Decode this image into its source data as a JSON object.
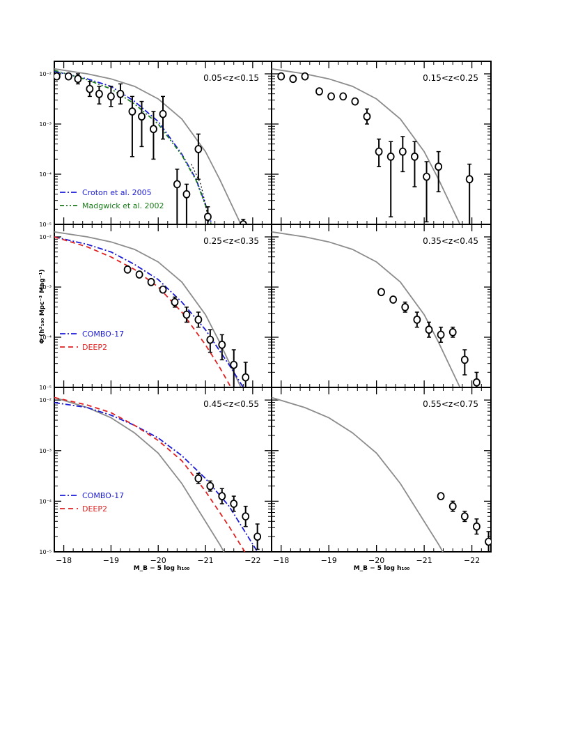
{
  "chart_data": [
    {
      "type": "scatter",
      "panel_label": "0.05<z<0.15",
      "xlim": [
        -17.8,
        -22.4
      ],
      "yexp_range": [
        -5,
        -1.75
      ],
      "y_scale": "log",
      "yticks": [
        {
          "exp": -2,
          "label": "10⁻²"
        },
        {
          "exp": -3,
          "label": "10⁻³"
        },
        {
          "exp": -4,
          "label": "10⁻⁴"
        },
        {
          "exp": -5,
          "label": "10⁻⁵"
        }
      ],
      "xticks": [],
      "series": [
        {
          "kind": "points",
          "x": [
            -17.85,
            -18.1,
            -18.3,
            -18.55,
            -18.75,
            -19.0,
            -19.2,
            -19.45,
            -19.65,
            -19.9,
            -20.1,
            -20.4,
            -20.6,
            -20.85,
            -21.05,
            -21.8
          ],
          "y": [
            -2.05,
            -2.05,
            -2.1,
            -2.3,
            -2.4,
            -2.45,
            -2.4,
            -2.75,
            -2.85,
            -3.1,
            -2.8,
            -4.2,
            -4.4,
            -3.5,
            -4.85,
            -5.0
          ],
          "err_lo": [
            0.05,
            0.05,
            0.1,
            0.15,
            0.2,
            0.2,
            0.2,
            0.9,
            0.6,
            0.6,
            0.5,
            0.8,
            0.6,
            0.6,
            0.3,
            0.1
          ],
          "err_hi": [
            0.05,
            0.05,
            0.1,
            0.15,
            0.15,
            0.2,
            0.2,
            0.3,
            0.3,
            0.35,
            0.35,
            0.3,
            0.2,
            0.3,
            0.2,
            0.1
          ]
        },
        {
          "kind": "curve",
          "style": "gray",
          "x": [
            -17.8,
            -18.5,
            -19.0,
            -19.5,
            -20.0,
            -20.5,
            -21.0,
            -21.3,
            -21.6,
            -21.9
          ],
          "y": [
            -1.9,
            -2.0,
            -2.1,
            -2.25,
            -2.5,
            -2.9,
            -3.55,
            -4.1,
            -4.7,
            -5.3
          ]
        },
        {
          "kind": "curve",
          "style": "blue",
          "name": "Croton et al. 2005",
          "x": [
            -17.8,
            -18.5,
            -19.0,
            -19.5,
            -20.0,
            -20.5,
            -20.8,
            -21.0,
            -21.2
          ],
          "y": [
            -1.95,
            -2.1,
            -2.25,
            -2.55,
            -2.95,
            -3.6,
            -4.1,
            -4.6,
            -5.2
          ]
        },
        {
          "kind": "curve",
          "style": "green",
          "name": "Madgwick et al. 2002",
          "x": [
            -17.8,
            -18.5,
            -19.0,
            -19.5,
            -20.0,
            -20.5,
            -20.8,
            -21.0,
            -21.2
          ],
          "y": [
            -1.93,
            -2.12,
            -2.3,
            -2.6,
            -3.0,
            -3.62,
            -4.12,
            -4.62,
            -5.25
          ]
        },
        {
          "kind": "curve",
          "style": "black-dot",
          "x": [
            -20.7,
            -20.9,
            -21.0,
            -21.1
          ],
          "y": [
            -3.8,
            -4.2,
            -4.6,
            -5.1
          ]
        }
      ],
      "legend": [
        {
          "style": "blue",
          "label": "Croton et al. 2005"
        },
        {
          "style": "green",
          "label": "Madgwick et al. 2002"
        }
      ]
    },
    {
      "type": "scatter",
      "panel_label": "0.15<z<0.25",
      "xlim": [
        -17.8,
        -22.4
      ],
      "yexp_range": [
        -5,
        -1.75
      ],
      "y_scale": "log",
      "yticks": [],
      "xticks": [],
      "series": [
        {
          "kind": "points",
          "x": [
            -18.0,
            -18.25,
            -18.5,
            -18.8,
            -19.05,
            -19.3,
            -19.55,
            -19.8,
            -20.05,
            -20.3,
            -20.55,
            -20.8,
            -21.05,
            -21.3,
            -21.95
          ],
          "y": [
            -2.05,
            -2.1,
            -2.05,
            -2.35,
            -2.45,
            -2.45,
            -2.55,
            -2.85,
            -3.55,
            -3.65,
            -3.55,
            -3.65,
            -4.05,
            -3.85,
            -4.1
          ],
          "err_lo": [
            0.05,
            0.05,
            0.05,
            0.05,
            0.05,
            0.05,
            0.05,
            0.15,
            0.3,
            1.2,
            0.4,
            0.6,
            0.9,
            0.5,
            0.9
          ],
          "err_hi": [
            0.05,
            0.05,
            0.05,
            0.05,
            0.05,
            0.05,
            0.05,
            0.15,
            0.25,
            0.3,
            0.3,
            0.3,
            0.3,
            0.3,
            0.3
          ]
        },
        {
          "kind": "curve",
          "style": "gray",
          "x": [
            -17.8,
            -18.5,
            -19.0,
            -19.5,
            -20.0,
            -20.5,
            -21.0,
            -21.3,
            -21.6,
            -21.9
          ],
          "y": [
            -1.9,
            -2.0,
            -2.1,
            -2.25,
            -2.5,
            -2.9,
            -3.55,
            -4.1,
            -4.7,
            -5.3
          ]
        }
      ],
      "legend": []
    },
    {
      "type": "scatter",
      "panel_label": "0.25<z<0.35",
      "xlim": [
        -17.8,
        -22.4
      ],
      "yexp_range": [
        -5,
        -1.75
      ],
      "y_scale": "log",
      "yticks": [
        {
          "exp": -2,
          "label": "10⁻²"
        },
        {
          "exp": -3,
          "label": "10⁻³"
        },
        {
          "exp": -4,
          "label": "10⁻⁴"
        },
        {
          "exp": -5,
          "label": "10⁻⁵"
        }
      ],
      "xticks": [],
      "ylabel": "Φ (h³₁₀₀ Mpc⁻³ Mag⁻¹)",
      "series": [
        {
          "kind": "points",
          "x": [
            -19.35,
            -19.6,
            -19.85,
            -20.1,
            -20.35,
            -20.6,
            -20.85,
            -21.1,
            -21.35,
            -21.6,
            -21.85
          ],
          "y": [
            -2.65,
            -2.75,
            -2.9,
            -3.05,
            -3.3,
            -3.55,
            -3.65,
            -4.05,
            -4.15,
            -4.55,
            -4.8
          ],
          "err_lo": [
            0.05,
            0.05,
            0.05,
            0.05,
            0.1,
            0.15,
            0.15,
            0.25,
            0.3,
            0.6,
            0.4
          ],
          "err_hi": [
            0.05,
            0.05,
            0.05,
            0.05,
            0.1,
            0.15,
            0.15,
            0.2,
            0.2,
            0.3,
            0.3
          ]
        },
        {
          "kind": "curve",
          "style": "gray",
          "x": [
            -17.8,
            -18.5,
            -19.0,
            -19.5,
            -20.0,
            -20.5,
            -21.0,
            -21.3,
            -21.6,
            -21.9
          ],
          "y": [
            -1.9,
            -2.0,
            -2.1,
            -2.25,
            -2.5,
            -2.9,
            -3.55,
            -4.1,
            -4.7,
            -5.3
          ]
        },
        {
          "kind": "curve",
          "style": "blue",
          "name": "COMBO-17",
          "x": [
            -17.8,
            -18.5,
            -19.0,
            -19.5,
            -20.0,
            -20.5,
            -21.0,
            -21.5,
            -21.8,
            -22.0
          ],
          "y": [
            -2.0,
            -2.15,
            -2.3,
            -2.55,
            -2.85,
            -3.3,
            -3.85,
            -4.55,
            -5.0,
            -5.3
          ]
        },
        {
          "kind": "curve",
          "style": "red",
          "name": "DEEP2",
          "x": [
            -17.8,
            -18.5,
            -19.0,
            -19.5,
            -20.0,
            -20.5,
            -21.0,
            -21.3,
            -21.6,
            -21.8
          ],
          "y": [
            -2.0,
            -2.2,
            -2.4,
            -2.65,
            -3.0,
            -3.5,
            -4.15,
            -4.6,
            -5.1,
            -5.4
          ]
        }
      ],
      "legend": [
        {
          "style": "blue",
          "label": "COMBO-17"
        },
        {
          "style": "red",
          "label": "DEEP2"
        }
      ]
    },
    {
      "type": "scatter",
      "panel_label": "0.35<z<0.45",
      "xlim": [
        -17.8,
        -22.4
      ],
      "yexp_range": [
        -5,
        -1.75
      ],
      "y_scale": "log",
      "yticks": [],
      "xticks": [],
      "series": [
        {
          "kind": "points",
          "x": [
            -20.1,
            -20.35,
            -20.6,
            -20.85,
            -21.1,
            -21.35,
            -21.6,
            -21.85,
            -22.1
          ],
          "y": [
            -3.1,
            -3.25,
            -3.4,
            -3.65,
            -3.85,
            -3.95,
            -3.9,
            -4.45,
            -4.9
          ],
          "err_lo": [
            0.05,
            0.05,
            0.1,
            0.15,
            0.15,
            0.15,
            0.1,
            0.3,
            0.3
          ],
          "err_hi": [
            0.05,
            0.05,
            0.1,
            0.15,
            0.15,
            0.15,
            0.1,
            0.2,
            0.2
          ]
        },
        {
          "kind": "curve",
          "style": "gray",
          "x": [
            -17.8,
            -18.5,
            -19.0,
            -19.5,
            -20.0,
            -20.5,
            -21.0,
            -21.3,
            -21.6,
            -21.9
          ],
          "y": [
            -1.9,
            -2.0,
            -2.1,
            -2.25,
            -2.5,
            -2.9,
            -3.55,
            -4.1,
            -4.7,
            -5.3
          ]
        }
      ],
      "legend": []
    },
    {
      "type": "scatter",
      "panel_label": "0.45<z<0.55",
      "xlim": [
        -17.8,
        -22.4
      ],
      "yexp_range": [
        -5,
        -1.75
      ],
      "y_scale": "log",
      "yticks": [
        {
          "exp": -2,
          "label": "10⁻²"
        },
        {
          "exp": -3,
          "label": "10⁻³"
        },
        {
          "exp": -4,
          "label": "10⁻⁴"
        },
        {
          "exp": -5,
          "label": "10⁻⁵"
        }
      ],
      "xticks": [
        {
          "v": -18,
          "label": "−18"
        },
        {
          "v": -19,
          "label": "−19"
        },
        {
          "v": -20,
          "label": "−20"
        },
        {
          "v": -21,
          "label": "−21"
        },
        {
          "v": -22,
          "label": "−22"
        }
      ],
      "xlabel": "M_B − 5 log h₁₀₀",
      "series": [
        {
          "kind": "points",
          "x": [
            -20.85,
            -21.1,
            -21.35,
            -21.6,
            -21.85,
            -22.1
          ],
          "y": [
            -3.55,
            -3.7,
            -3.9,
            -4.05,
            -4.3,
            -4.7
          ],
          "err_lo": [
            0.1,
            0.1,
            0.15,
            0.15,
            0.2,
            0.25
          ],
          "err_hi": [
            0.1,
            0.1,
            0.15,
            0.15,
            0.2,
            0.25
          ]
        },
        {
          "kind": "curve",
          "style": "gray",
          "x": [
            -17.8,
            -18.5,
            -19.0,
            -19.5,
            -20.0,
            -20.5,
            -21.0,
            -21.3,
            -21.6
          ],
          "y": [
            -1.95,
            -2.15,
            -2.35,
            -2.65,
            -3.05,
            -3.65,
            -4.4,
            -4.85,
            -5.35
          ]
        },
        {
          "kind": "curve",
          "style": "blue",
          "name": "COMBO-17",
          "x": [
            -17.8,
            -18.5,
            -19.0,
            -19.5,
            -20.0,
            -20.5,
            -21.0,
            -21.5,
            -22.0,
            -22.3
          ],
          "y": [
            -2.05,
            -2.15,
            -2.3,
            -2.5,
            -2.75,
            -3.1,
            -3.55,
            -4.1,
            -4.85,
            -5.3
          ]
        },
        {
          "kind": "curve",
          "style": "red",
          "name": "DEEP2",
          "x": [
            -17.8,
            -18.5,
            -19.0,
            -19.5,
            -20.0,
            -20.5,
            -21.0,
            -21.5,
            -21.9,
            -22.1
          ],
          "y": [
            -1.95,
            -2.1,
            -2.25,
            -2.5,
            -2.8,
            -3.2,
            -3.8,
            -4.5,
            -5.1,
            -5.4
          ]
        }
      ],
      "legend": [
        {
          "style": "blue",
          "label": "COMBO-17"
        },
        {
          "style": "red",
          "label": "DEEP2"
        }
      ]
    },
    {
      "type": "scatter",
      "panel_label": "0.55<z<0.75",
      "xlim": [
        -17.8,
        -22.4
      ],
      "yexp_range": [
        -5,
        -1.75
      ],
      "y_scale": "log",
      "yticks": [],
      "xticks": [
        {
          "v": -18,
          "label": "−18"
        },
        {
          "v": -19,
          "label": "−19"
        },
        {
          "v": -20,
          "label": "−20"
        },
        {
          "v": -21,
          "label": "−21"
        },
        {
          "v": -22,
          "label": "−22"
        }
      ],
      "xlabel": "M_B − 5 log h₁₀₀",
      "series": [
        {
          "kind": "points",
          "x": [
            -21.35,
            -21.6,
            -21.85,
            -22.1,
            -22.35
          ],
          "y": [
            -3.9,
            -4.1,
            -4.3,
            -4.5,
            -4.8
          ],
          "err_lo": [
            0.05,
            0.1,
            0.1,
            0.15,
            0.2
          ],
          "err_hi": [
            0.05,
            0.1,
            0.1,
            0.15,
            0.2
          ]
        },
        {
          "kind": "curve",
          "style": "gray",
          "x": [
            -17.8,
            -18.5,
            -19.0,
            -19.5,
            -20.0,
            -20.5,
            -21.0,
            -21.3,
            -21.6
          ],
          "y": [
            -1.95,
            -2.15,
            -2.35,
            -2.65,
            -3.05,
            -3.65,
            -4.4,
            -4.85,
            -5.35
          ]
        }
      ],
      "legend": []
    }
  ],
  "figure": {
    "colors": {
      "gray": "#8c8c8c",
      "blue": "#1b1bd6",
      "green": "#1a7a1a",
      "red": "#e02020",
      "black": "#000000"
    },
    "ylabel_text": "Φ (h³₁₀₀ Mpc⁻³ Mag⁻¹)",
    "xlabel_text": "M_B − 5 log h₁₀₀"
  }
}
